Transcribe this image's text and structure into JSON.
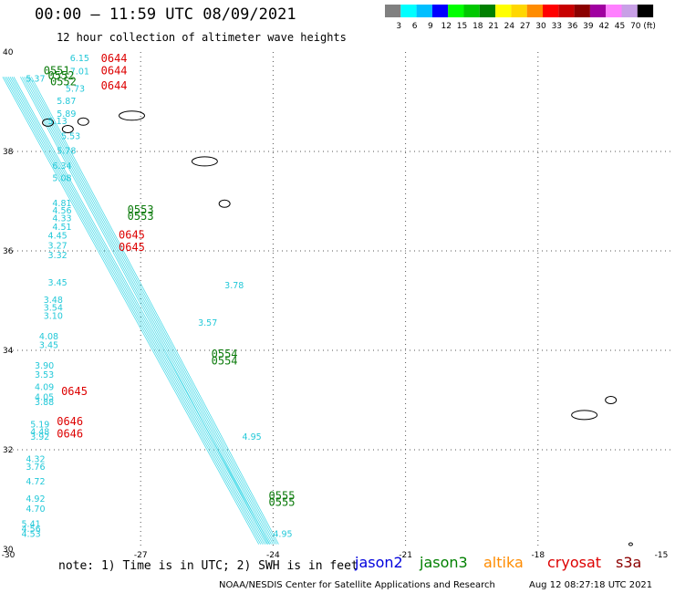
{
  "header": {
    "title": "00:00 – 11:59 UTC 08/09/2021",
    "subtitle": "12 hour collection of altimeter wave heights"
  },
  "colorbar": {
    "unit": "(ft)",
    "items": [
      {
        "label": "3",
        "color": "#808080"
      },
      {
        "label": "6",
        "color": "#00ffff"
      },
      {
        "label": "9",
        "color": "#00bfff"
      },
      {
        "label": "12",
        "color": "#0000ff"
      },
      {
        "label": "15",
        "color": "#00ff00"
      },
      {
        "label": "18",
        "color": "#00c800"
      },
      {
        "label": "21",
        "color": "#008000"
      },
      {
        "label": "24",
        "color": "#ffff00"
      },
      {
        "label": "27",
        "color": "#ffd700"
      },
      {
        "label": "30",
        "color": "#ff8c00"
      },
      {
        "label": "33",
        "color": "#ff0000"
      },
      {
        "label": "36",
        "color": "#c80000"
      },
      {
        "label": "39",
        "color": "#8b0000"
      },
      {
        "label": "42",
        "color": "#a000a0"
      },
      {
        "label": "45",
        "color": "#ff80ff"
      },
      {
        "label": "70",
        "color": "#c8a0e6"
      },
      {
        "label": "",
        "color": "#000000"
      }
    ]
  },
  "chart_data": {
    "type": "scatter",
    "title": "00:00 – 11:59 UTC 08/09/2021",
    "subtitle": "12 hour collection of altimeter wave heights",
    "xlim": [
      -30,
      -15
    ],
    "ylim": [
      30,
      40
    ],
    "x_ticks": [
      "-30",
      "-27",
      "-24",
      "-21",
      "-18",
      "-15"
    ],
    "y_ticks": [
      "30",
      "32",
      "34",
      "36",
      "38",
      "40"
    ],
    "grid": true,
    "grid_style": "dotted",
    "swh_labels": [
      {
        "lon": -28.6,
        "lat": 39.82,
        "v": "6.15"
      },
      {
        "lon": -28.6,
        "lat": 39.55,
        "v": "7.01"
      },
      {
        "lon": -29.6,
        "lat": 39.4,
        "v": "5.37"
      },
      {
        "lon": -28.7,
        "lat": 39.2,
        "v": "5.73"
      },
      {
        "lon": -28.9,
        "lat": 38.95,
        "v": "5.87"
      },
      {
        "lon": -28.9,
        "lat": 38.7,
        "v": "5.89"
      },
      {
        "lon": -29.1,
        "lat": 38.55,
        "v": "5.13"
      },
      {
        "lon": -28.8,
        "lat": 38.25,
        "v": "5.53"
      },
      {
        "lon": -28.9,
        "lat": 37.95,
        "v": "5.78"
      },
      {
        "lon": -29.0,
        "lat": 37.65,
        "v": "6.34"
      },
      {
        "lon": -29.0,
        "lat": 37.4,
        "v": "5.08"
      },
      {
        "lon": -29.0,
        "lat": 36.9,
        "v": "4.81"
      },
      {
        "lon": -29.0,
        "lat": 36.75,
        "v": "4.56"
      },
      {
        "lon": -29.0,
        "lat": 36.6,
        "v": "4.33"
      },
      {
        "lon": -29.0,
        "lat": 36.42,
        "v": "4.51"
      },
      {
        "lon": -29.1,
        "lat": 36.25,
        "v": "4.45"
      },
      {
        "lon": -29.1,
        "lat": 36.05,
        "v": "3.27"
      },
      {
        "lon": -29.1,
        "lat": 35.85,
        "v": "3.32"
      },
      {
        "lon": -29.1,
        "lat": 35.3,
        "v": "3.45"
      },
      {
        "lon": -29.2,
        "lat": 34.95,
        "v": "3.48"
      },
      {
        "lon": -29.2,
        "lat": 34.8,
        "v": "3.54"
      },
      {
        "lon": -29.2,
        "lat": 34.63,
        "v": "3.10"
      },
      {
        "lon": -29.3,
        "lat": 34.22,
        "v": "4.08"
      },
      {
        "lon": -29.3,
        "lat": 34.05,
        "v": "3.45"
      },
      {
        "lon": -29.4,
        "lat": 33.63,
        "v": "3.90"
      },
      {
        "lon": -29.4,
        "lat": 33.45,
        "v": "3.53"
      },
      {
        "lon": -29.4,
        "lat": 33.2,
        "v": "4.09"
      },
      {
        "lon": -29.4,
        "lat": 33.0,
        "v": "4.05"
      },
      {
        "lon": -29.4,
        "lat": 32.9,
        "v": "3.88"
      },
      {
        "lon": -29.5,
        "lat": 32.45,
        "v": "5.19"
      },
      {
        "lon": -29.5,
        "lat": 32.3,
        "v": "4.48"
      },
      {
        "lon": -29.5,
        "lat": 32.2,
        "v": "3.92"
      },
      {
        "lon": -29.6,
        "lat": 31.75,
        "v": "4.32"
      },
      {
        "lon": -29.6,
        "lat": 31.6,
        "v": "3.76"
      },
      {
        "lon": -29.6,
        "lat": 31.3,
        "v": "4.72"
      },
      {
        "lon": -29.6,
        "lat": 30.95,
        "v": "4.92"
      },
      {
        "lon": -29.6,
        "lat": 30.75,
        "v": "4.70"
      },
      {
        "lon": -29.7,
        "lat": 30.45,
        "v": "5.41"
      },
      {
        "lon": -29.7,
        "lat": 30.35,
        "v": "4.56"
      },
      {
        "lon": -29.7,
        "lat": 30.25,
        "v": "4.53"
      },
      {
        "lon": -25.1,
        "lat": 35.25,
        "v": "3.78"
      },
      {
        "lon": -25.7,
        "lat": 34.5,
        "v": "3.57"
      },
      {
        "lon": -24.7,
        "lat": 32.2,
        "v": "4.95"
      },
      {
        "lon": -24.0,
        "lat": 30.25,
        "v": "4.95"
      }
    ],
    "time_labels": [
      {
        "lon": -27.9,
        "lat": 39.8,
        "t": "0644",
        "sat": "cryosat"
      },
      {
        "lon": -27.9,
        "lat": 39.55,
        "t": "0644",
        "sat": "cryosat"
      },
      {
        "lon": -27.9,
        "lat": 39.25,
        "t": "0644",
        "sat": "cryosat"
      },
      {
        "lon": -27.5,
        "lat": 36.25,
        "t": "0645",
        "sat": "cryosat"
      },
      {
        "lon": -27.5,
        "lat": 36.0,
        "t": "0645",
        "sat": "cryosat"
      },
      {
        "lon": -28.8,
        "lat": 33.1,
        "t": "0645",
        "sat": "cryosat"
      },
      {
        "lon": -28.9,
        "lat": 32.5,
        "t": "0646",
        "sat": "cryosat"
      },
      {
        "lon": -28.9,
        "lat": 32.25,
        "t": "0646",
        "sat": "cryosat"
      },
      {
        "lon": -29.2,
        "lat": 39.55,
        "t": "0551",
        "sat": "jason3"
      },
      {
        "lon": -29.1,
        "lat": 39.45,
        "t": "0552",
        "sat": "jason3"
      },
      {
        "lon": -29.05,
        "lat": 39.33,
        "t": "0552",
        "sat": "jason3"
      },
      {
        "lon": -27.3,
        "lat": 36.75,
        "t": "0553",
        "sat": "jason3"
      },
      {
        "lon": -27.3,
        "lat": 36.62,
        "t": "0553",
        "sat": "jason3"
      },
      {
        "lon": -25.4,
        "lat": 33.85,
        "t": "0554",
        "sat": "jason3"
      },
      {
        "lon": -25.4,
        "lat": 33.72,
        "t": "0554",
        "sat": "jason3"
      },
      {
        "lon": -24.1,
        "lat": 31.0,
        "t": "0555",
        "sat": "jason3"
      },
      {
        "lon": -24.1,
        "lat": 30.87,
        "t": "0555",
        "sat": "jason3"
      }
    ],
    "tracks": [
      {
        "sat": "cryosat",
        "from": [
          -30.0,
          39.5
        ],
        "to": [
          -24.2,
          30.1
        ]
      },
      {
        "sat": "jason3",
        "from": [
          -29.6,
          39.5
        ],
        "to": [
          -24.0,
          30.1
        ]
      }
    ],
    "islands": [
      {
        "name": "Flores",
        "lon": -29.1,
        "lat": 38.58
      },
      {
        "name": "Graciosa-A",
        "lon": -28.3,
        "lat": 38.6
      },
      {
        "name": "Terceira",
        "lon": -27.2,
        "lat": 38.72
      },
      {
        "name": "SaoMiguel",
        "lon": -25.55,
        "lat": 37.8
      },
      {
        "name": "SantaMaria",
        "lon": -25.1,
        "lat": 36.95
      },
      {
        "name": "Pico",
        "lon": -28.65,
        "lat": 38.45
      },
      {
        "name": "Madeira",
        "lon": -16.95,
        "lat": 32.7
      },
      {
        "name": "PortoSanto",
        "lon": -16.35,
        "lat": 33.0
      },
      {
        "name": "Selvagens",
        "lon": -15.9,
        "lat": 30.1
      }
    ]
  },
  "footer": {
    "note": "note: 1) Time is in UTC; 2) SWH is in feet",
    "satellites": [
      {
        "label": "jason2",
        "color": "#0000dd"
      },
      {
        "label": "jason3",
        "color": "#008000"
      },
      {
        "label": "altika",
        "color": "#ff8c00"
      },
      {
        "label": "cryosat",
        "color": "#dd0000"
      },
      {
        "label": "s3a",
        "color": "#8b0000"
      }
    ],
    "credit": "NOAA/NESDIS Center for Satellite Applications and Research",
    "timestamp": "Aug 12 08:27:18 UTC 2021"
  }
}
